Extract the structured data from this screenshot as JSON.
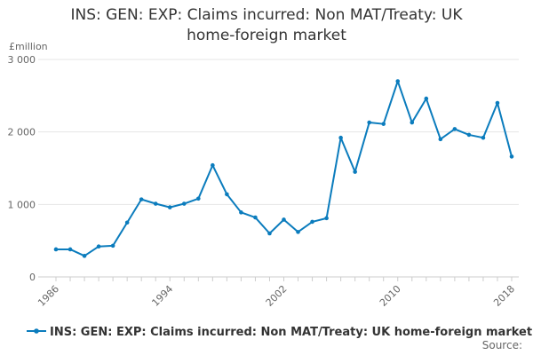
{
  "title_line1": "INS: GEN: EXP: Claims incurred: Non MAT/Treaty: UK",
  "title_line2": "home-foreign market",
  "y_unit": "£million",
  "source": "Source:",
  "series_color": "#0b7cbd",
  "chart_data": {
    "type": "line",
    "title": "INS: GEN: EXP: Claims incurred: Non MAT/Treaty: UK home-foreign market",
    "ylabel": "£million",
    "xlabel": "",
    "xlim": [
      1986,
      2018
    ],
    "ylim": [
      0,
      3000
    ],
    "x_ticks": [
      "1986",
      "1994",
      "2002",
      "2010",
      "2018"
    ],
    "y_ticks": [
      "0",
      "1 000",
      "2 000",
      "3 000"
    ],
    "y_tick_values": [
      0,
      1000,
      2000,
      3000
    ],
    "grid": "horizontal",
    "legend": "bottom",
    "x": [
      1986,
      1987,
      1988,
      1989,
      1990,
      1991,
      1992,
      1993,
      1994,
      1995,
      1996,
      1997,
      1998,
      1999,
      2000,
      2001,
      2002,
      2003,
      2004,
      2005,
      2006,
      2007,
      2008,
      2009,
      2010,
      2011,
      2012,
      2013,
      2014,
      2015,
      2016,
      2017,
      2018
    ],
    "series": [
      {
        "name": "INS: GEN: EXP: Claims incurred: Non MAT/Treaty: UK home-foreign market",
        "values": [
          380,
          380,
          290,
          420,
          430,
          750,
          1070,
          1010,
          960,
          1010,
          1080,
          1540,
          1140,
          890,
          820,
          600,
          790,
          620,
          760,
          810,
          1920,
          1450,
          2130,
          2110,
          2700,
          2130,
          2460,
          1900,
          2040,
          1960,
          1920,
          2400,
          1660
        ]
      }
    ]
  }
}
